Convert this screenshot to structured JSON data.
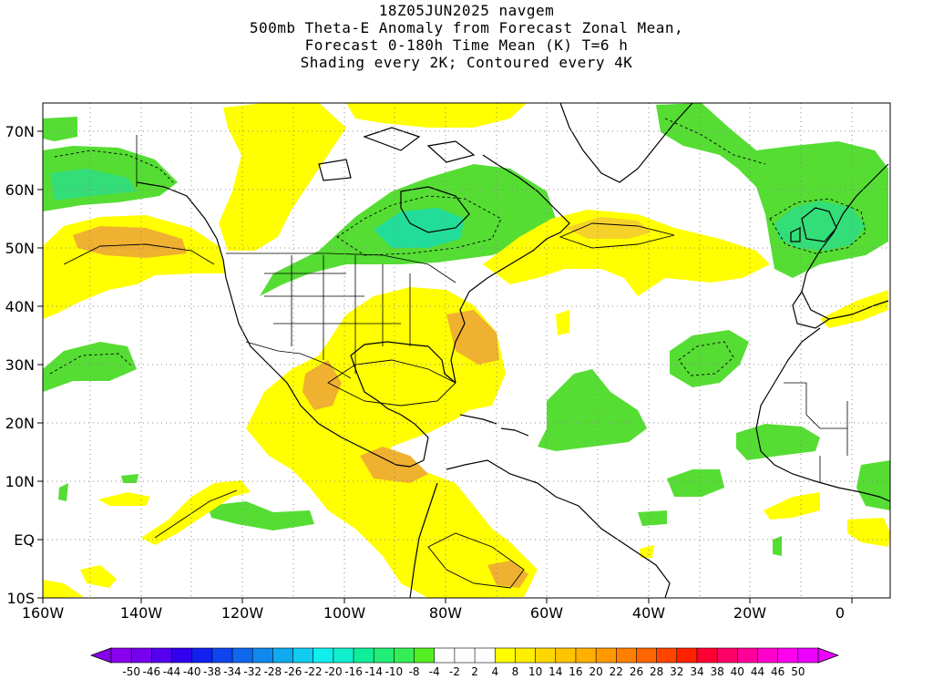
{
  "title": {
    "lines": [
      "18Z05JUN2025 navgem",
      "500mb Theta-E Anomaly from Forecast Zonal Mean,",
      "Forecast 0-180h Time Mean (K) T=6 h",
      "Shading every 2K; Contoured every 4K"
    ]
  },
  "map": {
    "lat_labels": [
      {
        "value": 70,
        "label": "70N"
      },
      {
        "value": 60,
        "label": "60N"
      },
      {
        "value": 50,
        "label": "50N"
      },
      {
        "value": 40,
        "label": "40N"
      },
      {
        "value": 30,
        "label": "30N"
      },
      {
        "value": 20,
        "label": "20N"
      },
      {
        "value": 10,
        "label": "10N"
      },
      {
        "value": 0,
        "label": "EQ"
      },
      {
        "value": -10,
        "label": "10S"
      }
    ],
    "lon_labels": [
      {
        "value": -160,
        "label": "160W"
      },
      {
        "value": -140,
        "label": "140W"
      },
      {
        "value": -120,
        "label": "120W"
      },
      {
        "value": -100,
        "label": "100W"
      },
      {
        "value": -80,
        "label": "80W"
      },
      {
        "value": -60,
        "label": "60W"
      },
      {
        "value": -40,
        "label": "40W"
      },
      {
        "value": -20,
        "label": "20W"
      },
      {
        "value": 0,
        "label": "0"
      }
    ],
    "colors": {
      "neg_light": "#55dd33",
      "neg_mid": "#33dd77",
      "neg_dark": "#22dd99",
      "pos_light": "#ffff00",
      "pos_mid": "#f5d22a",
      "pos_dark": "#f0b030",
      "coast": "#000000",
      "grid": "#aaaaaa"
    }
  },
  "colorbar": {
    "labels": [
      "-50",
      "-46",
      "-44",
      "-40",
      "-38",
      "-34",
      "-32",
      "-28",
      "-26",
      "-22",
      "-20",
      "-16",
      "-14",
      "-10",
      "-8",
      "-4",
      "-2",
      "2",
      "4",
      "8",
      "10",
      "14",
      "16",
      "20",
      "22",
      "26",
      "28",
      "32",
      "34",
      "38",
      "40",
      "44",
      "46",
      "50"
    ],
    "colors": [
      "#8800ee",
      "#7700ee",
      "#5500ee",
      "#3300ee",
      "#1122ee",
      "#1144ee",
      "#1166ee",
      "#1188ee",
      "#11aaee",
      "#11ccee",
      "#11eeee",
      "#11eecc",
      "#11ee99",
      "#22ee77",
      "#33ee55",
      "#55ee22",
      "#ffffff",
      "#ffffff",
      "#ffffff",
      "#ffff00",
      "#ffee00",
      "#ffd700",
      "#ffc400",
      "#ffb000",
      "#ff9900",
      "#ff8000",
      "#ff6600",
      "#ff4400",
      "#ff2200",
      "#ff0033",
      "#ff0066",
      "#ff0099",
      "#ff00cc",
      "#ff00ee",
      "#ee00ff"
    ]
  }
}
